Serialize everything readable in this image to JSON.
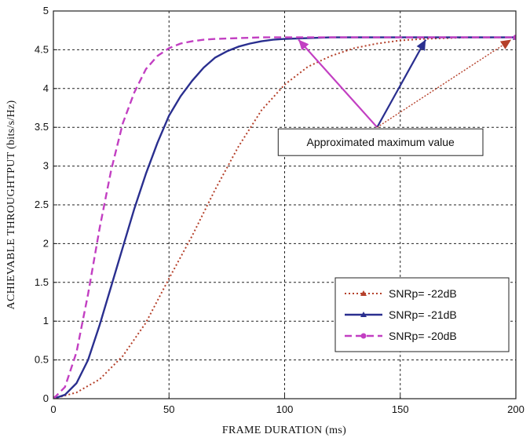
{
  "chart_data": {
    "type": "line",
    "title": "",
    "xlabel": "FRAME DURATION  (ms)",
    "ylabel": "ACHIEVABLE THROUGHTPUT  (bits/s/Hz)",
    "xlim": [
      0,
      200
    ],
    "ylim": [
      0,
      5
    ],
    "xticks": [
      "0",
      "50",
      "100",
      "150",
      "200"
    ],
    "yticks": [
      "0",
      "0.5",
      "1",
      "1.5",
      "2",
      "2.5",
      "3",
      "3.5",
      "4",
      "4.5",
      "5"
    ],
    "xtick_values": [
      0,
      50,
      100,
      150,
      200
    ],
    "ytick_values": [
      0,
      0.5,
      1,
      1.5,
      2,
      2.5,
      3,
      3.5,
      4,
      4.5,
      5
    ],
    "grid": true,
    "legend_position": "bottom-right",
    "series": [
      {
        "name": "SNRp= -22dB",
        "color": "#b5402a",
        "style": "dotted",
        "marker": "triangle",
        "x": [
          0,
          10,
          20,
          30,
          40,
          50,
          60,
          70,
          80,
          90,
          100,
          110,
          120,
          130,
          140,
          150,
          160,
          170,
          180,
          190,
          200
        ],
        "y": [
          0,
          0.08,
          0.25,
          0.55,
          0.98,
          1.55,
          2.1,
          2.7,
          3.25,
          3.72,
          4.05,
          4.28,
          4.42,
          4.52,
          4.58,
          4.62,
          4.64,
          4.65,
          4.66,
          4.66,
          4.66
        ]
      },
      {
        "name": "SNRp= -21dB",
        "color": "#2a2f8f",
        "style": "solid",
        "marker": "triangle",
        "x": [
          0,
          5,
          10,
          15,
          20,
          25,
          30,
          35,
          40,
          45,
          50,
          55,
          60,
          65,
          70,
          75,
          80,
          85,
          90,
          95,
          100,
          110,
          120,
          140,
          160,
          180,
          200
        ],
        "y": [
          0,
          0.05,
          0.2,
          0.5,
          0.95,
          1.45,
          1.95,
          2.45,
          2.9,
          3.3,
          3.65,
          3.9,
          4.1,
          4.27,
          4.4,
          4.48,
          4.54,
          4.58,
          4.61,
          4.63,
          4.64,
          4.65,
          4.66,
          4.66,
          4.66,
          4.66,
          4.66
        ]
      },
      {
        "name": "SNRp= -20dB",
        "color": "#c23fc2",
        "style": "dashed",
        "marker": "circle",
        "x": [
          0,
          5,
          10,
          15,
          20,
          25,
          30,
          35,
          40,
          45,
          50,
          55,
          60,
          65,
          70,
          80,
          90,
          100,
          120,
          140,
          160,
          180,
          200
        ],
        "y": [
          0,
          0.15,
          0.6,
          1.35,
          2.2,
          2.95,
          3.55,
          3.95,
          4.25,
          4.42,
          4.52,
          4.58,
          4.61,
          4.63,
          4.64,
          4.65,
          4.66,
          4.66,
          4.66,
          4.66,
          4.66,
          4.66,
          4.66
        ]
      }
    ],
    "annotation": {
      "text": "Approximated maximum value",
      "box_data": {
        "x0": 140,
        "x1": 200
      },
      "origin": {
        "x": 140,
        "y": 3.5
      },
      "arrows": [
        {
          "x": 106,
          "y": 4.63,
          "color": "#c23fc2"
        },
        {
          "x": 161,
          "y": 4.63,
          "color": "#2a2f8f"
        },
        {
          "x": 198,
          "y": 4.63,
          "color": "#b5402a"
        }
      ]
    }
  }
}
